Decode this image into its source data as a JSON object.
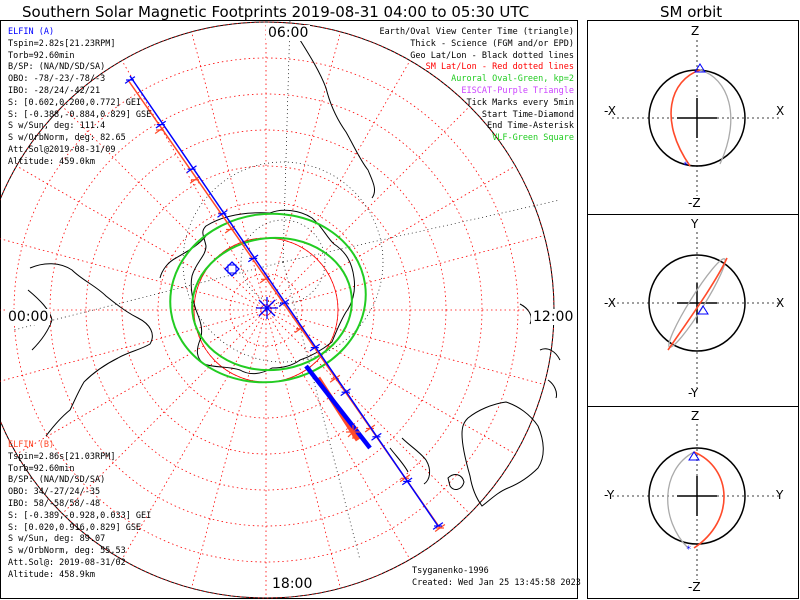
{
  "header": {
    "title": "Southern Solar Magnetic Footprints 2019-08-31 04:00 to 05:30 UTC",
    "orbit_title": "SM orbit"
  },
  "map": {
    "hour_labels": {
      "top": "06:00",
      "left": "00:00",
      "right": "12:00",
      "bottom": "18:00"
    }
  },
  "legend": [
    {
      "text": "Earth/Oval View Center Time (triangle)",
      "color": "#000000"
    },
    {
      "text": "Thick - Science (FGM and/or EPD)",
      "color": "#000000"
    },
    {
      "text": "Geo Lat/Lon - Black dotted lines",
      "color": "#000000"
    },
    {
      "text": "SM Lat/Lon - Red dotted lines",
      "color": "#ff0000"
    },
    {
      "text": "Auroral Oval-Green, kp=2",
      "color": "#22cc22"
    },
    {
      "text": "EISCAT-Purple Triangle",
      "color": "#cc44ff"
    },
    {
      "text": "Tick Marks every 5min",
      "color": "#000000"
    },
    {
      "text": "Start Time-Diamond",
      "color": "#000000"
    },
    {
      "text": "End Time-Asterisk",
      "color": "#000000"
    },
    {
      "text": "VLF-Green Square",
      "color": "#22cc22"
    }
  ],
  "elfin_a": {
    "name": "ELFIN (A)",
    "lines": [
      "Tspin=2.82s[21.23RPM]",
      "Torb=92.60min",
      "B/SP: (NA/ND/SD/SA)",
      "OBO: -78/-23/-78/-3",
      "IBO: -28/24/-42/21",
      "S: [0.602,0.200,0.772] GEI",
      "S: [-0.388,-0.884,0.829] GSE",
      "S w/Sun, deg: 111.4",
      "S w/OrbNorm, deg: 82.65",
      "Att.Sol@2019-08-31/09",
      "Altitude: 459.0km"
    ]
  },
  "elfin_b": {
    "name": "ELFIN (B)",
    "lines": [
      "Tspin=2.86s[21.03RPM]",
      "Torb=92.60min",
      "B/SP: (NA/ND/SD/SA)",
      "OBO: 34/-27/24/-35",
      "IBO: 58/-58/58/-48",
      "S: [-0.389,-0.928,0.033] GEI",
      "S: [0.020,0.916,0.829] GSE",
      "S w/Sun, deg: 89.07",
      "S w/OrbNorm, deg: 55.53",
      "Att.Sol@: 2019-08-31/02",
      "Altitude: 458.9km"
    ]
  },
  "footer": {
    "credit": "Tsyganenko-1996",
    "created": "Created: Wed Jan 25 13:45:58 2023"
  },
  "orbit_panels": [
    {
      "top": "Z",
      "bottom": "-Z",
      "left": "-X",
      "right": "X"
    },
    {
      "top": "Y",
      "bottom": "-Y",
      "left": "-X",
      "right": "X"
    },
    {
      "top": "Z",
      "bottom": "-Z",
      "left": "-Y",
      "right": "Y"
    }
  ],
  "colors": {
    "elfin_a": "#0000ff",
    "elfin_b": "#ff4a2a",
    "sm_grid": "#ff0000",
    "auroral_oval": "#22cc22",
    "coastline": "#000000"
  },
  "chart_data": {
    "type": "line",
    "title": "Southern Solar Magnetic Footprints 2019-08-31 04:00 to 05:30 UTC",
    "projection": "polar, southern hemisphere, SM magnetic local time",
    "mlt_labels": [
      "00:00",
      "06:00",
      "12:00",
      "18:00"
    ],
    "sm_latitude_circles_deg": [
      -50,
      -55,
      -60,
      -65,
      -70,
      -75,
      -80,
      -85
    ],
    "series": [
      {
        "name": "ELFIN (A)",
        "color": "#0000ff",
        "tick_interval_min": 5
      },
      {
        "name": "ELFIN (B)",
        "color": "#ff4a2a",
        "tick_interval_min": 5
      }
    ],
    "auroral_oval_kp": 2
  }
}
